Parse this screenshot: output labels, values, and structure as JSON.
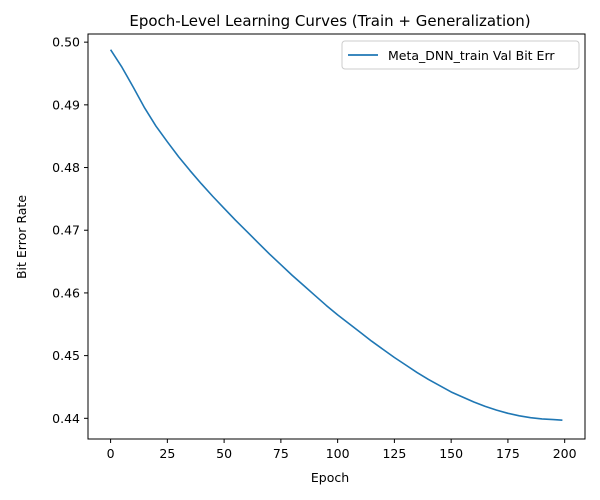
{
  "chart_data": {
    "type": "line",
    "title": "Epoch-Level Learning Curves (Train + Generalization)",
    "xlabel": "Epoch",
    "ylabel": "Bit Error Rate",
    "xlim": [
      -9.95,
      208.95
    ],
    "ylim": [
      0.4367,
      0.5013
    ],
    "xticks": [
      0,
      25,
      50,
      75,
      100,
      125,
      150,
      175,
      200
    ],
    "xtick_labels": [
      "0",
      "25",
      "50",
      "75",
      "100",
      "125",
      "150",
      "175",
      "200"
    ],
    "yticks": [
      0.44,
      0.45,
      0.46,
      0.47,
      0.48,
      0.49,
      0.5
    ],
    "ytick_labels": [
      "0.44",
      "0.45",
      "0.46",
      "0.47",
      "0.48",
      "0.49",
      "0.50"
    ],
    "grid": false,
    "legend": {
      "position": "top-right",
      "entries": [
        "Meta_DNN_train Val Bit Err"
      ]
    },
    "series": [
      {
        "name": "Meta_DNN_train Val Bit Err",
        "color": "#1f77b4",
        "x": [
          0,
          5,
          10,
          15,
          20,
          25,
          30,
          35,
          40,
          45,
          50,
          55,
          60,
          65,
          70,
          75,
          80,
          85,
          90,
          95,
          100,
          105,
          110,
          115,
          120,
          125,
          130,
          135,
          140,
          145,
          150,
          155,
          160,
          165,
          170,
          175,
          180,
          185,
          190,
          195,
          199
        ],
        "values": [
          0.4988,
          0.496,
          0.4928,
          0.4895,
          0.4866,
          0.4841,
          0.4817,
          0.4795,
          0.4774,
          0.4754,
          0.4735,
          0.4716,
          0.4698,
          0.468,
          0.4662,
          0.4645,
          0.4628,
          0.4612,
          0.4596,
          0.458,
          0.4565,
          0.4551,
          0.4537,
          0.4523,
          0.451,
          0.4497,
          0.4485,
          0.4473,
          0.4462,
          0.4452,
          0.4442,
          0.4434,
          0.4426,
          0.4419,
          0.4413,
          0.4408,
          0.4404,
          0.4401,
          0.4399,
          0.4398,
          0.4397
        ]
      }
    ]
  }
}
